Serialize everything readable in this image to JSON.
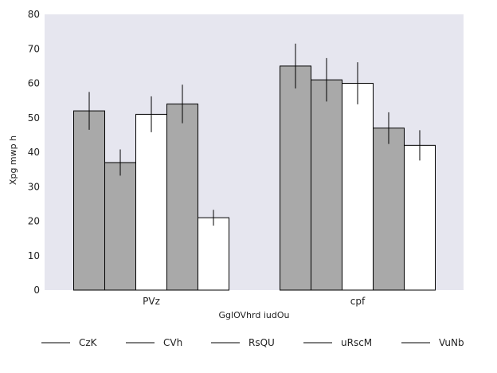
{
  "chart_data": {
    "type": "bar",
    "title": "",
    "xlabel": "GglOVhrd iudOu",
    "ylabel": "Xpg mwp h",
    "ylim": [
      0,
      80
    ],
    "yticks": [
      0,
      10,
      20,
      30,
      40,
      50,
      60,
      70,
      80
    ],
    "categories": [
      "PVz",
      "cpf"
    ],
    "series": [
      {
        "name": "CzK",
        "values": [
          52,
          65
        ],
        "errors": [
          5.5,
          6.5
        ],
        "color": "#a9a9a9"
      },
      {
        "name": "CVh",
        "values": [
          37,
          61
        ],
        "errors": [
          3.8,
          6.3
        ],
        "color": "#a9a9a9"
      },
      {
        "name": "RsQU",
        "values": [
          51,
          60
        ],
        "errors": [
          5.2,
          6.1
        ],
        "color": "#ffffff"
      },
      {
        "name": "uRscM",
        "values": [
          54,
          47
        ],
        "errors": [
          5.6,
          4.6
        ],
        "color": "#a9a9a9"
      },
      {
        "name": "VuNb",
        "values": [
          21,
          42
        ],
        "errors": [
          2.3,
          4.4
        ],
        "color": "#ffffff"
      }
    ],
    "plot_background": "#e6e6ef",
    "grid": false,
    "legend_position": "bottom"
  }
}
